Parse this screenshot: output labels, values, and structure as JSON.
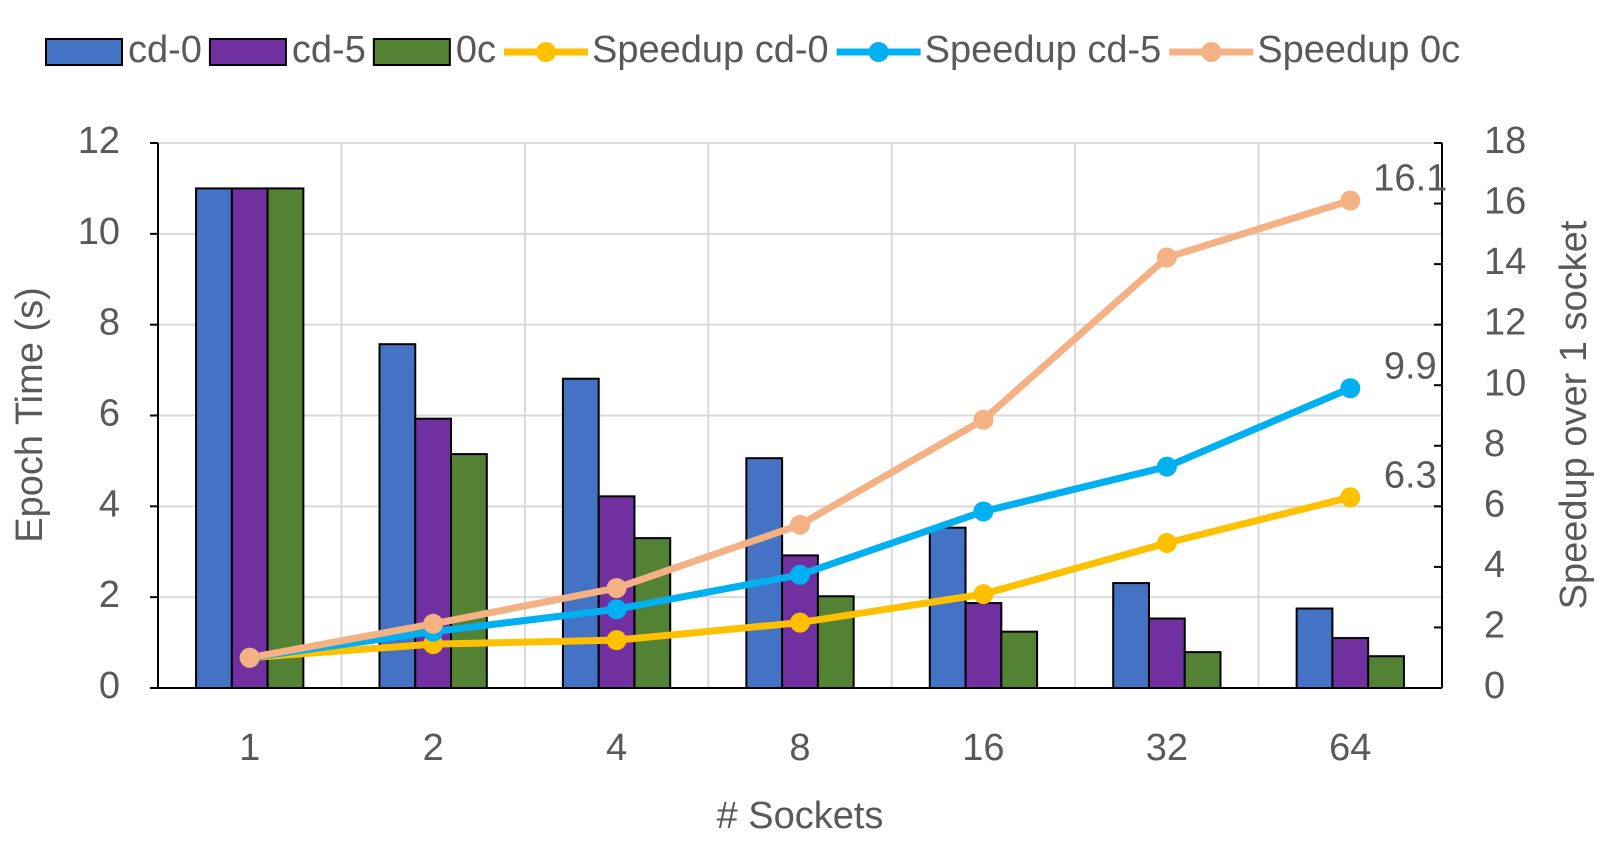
{
  "chart_data": {
    "type": "bar",
    "x_label": "# Sockets",
    "y_label": "Epoch Time (s)",
    "y2_label": "Speedup over 1 socket",
    "categories": [
      "1",
      "2",
      "4",
      "8",
      "16",
      "32",
      "64"
    ],
    "series": [
      {
        "name": "cd-0",
        "type": "bar",
        "color": "#4472c4",
        "values": [
          11,
          7.57,
          6.81,
          5.06,
          3.53,
          2.31,
          1.75
        ]
      },
      {
        "name": "cd-5",
        "type": "bar",
        "color": "#7030a0",
        "values": [
          11,
          5.93,
          4.22,
          2.92,
          1.87,
          1.53,
          1.1
        ]
      },
      {
        "name": "0c",
        "type": "bar",
        "color": "#548235",
        "values": [
          11,
          5.15,
          3.3,
          2.02,
          1.24,
          0.79,
          0.7
        ]
      },
      {
        "name": "Speedup cd-0",
        "type": "line",
        "axis": "y2",
        "color": "#ffc000",
        "values": [
          1,
          1.45,
          1.58,
          2.16,
          3.1,
          4.79,
          6.3
        ],
        "data_labels": "last"
      },
      {
        "name": "Speedup cd-5",
        "type": "line",
        "axis": "y2",
        "color": "#00b0f0",
        "values": [
          1,
          1.86,
          2.6,
          3.74,
          5.83,
          7.31,
          9.9
        ],
        "data_labels": "last"
      },
      {
        "name": "Speedup 0c",
        "type": "line",
        "axis": "y2",
        "color": "#f4b183",
        "values": [
          1,
          2.12,
          3.3,
          5.39,
          8.86,
          14.22,
          16.1
        ],
        "data_labels": "last"
      }
    ],
    "ylim": [
      0,
      12
    ],
    "yticks": [
      0,
      2,
      4,
      6,
      8,
      10,
      12
    ],
    "y2lim": [
      0,
      18
    ],
    "y2ticks": [
      0,
      2,
      4,
      6,
      8,
      10,
      12,
      14,
      16,
      18
    ],
    "grid": true,
    "legend": "top"
  }
}
